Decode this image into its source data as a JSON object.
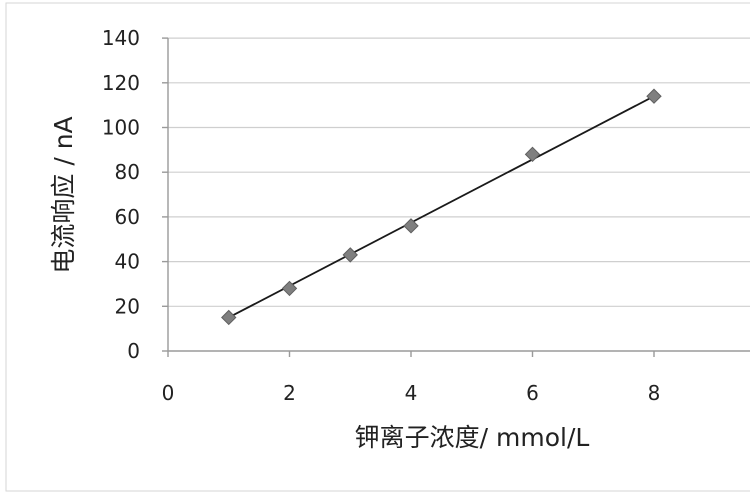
{
  "chart_data": {
    "type": "scatter",
    "xlabel": "钾离子浓度/ mmol/L",
    "ylabel": "电流响应 / nA",
    "xlim": [
      0,
      10
    ],
    "ylim": [
      0,
      140
    ],
    "x_ticks": [
      0,
      2,
      4,
      6,
      8
    ],
    "y_ticks": [
      0,
      20,
      40,
      60,
      80,
      100,
      120,
      140
    ],
    "grid": "horizontal",
    "legend": "none",
    "marker": "diamond",
    "marker_color": "#7f7f7f",
    "line_color": "#1a1a1a",
    "series": [
      {
        "points": [
          {
            "x": 1,
            "y": 15
          },
          {
            "x": 2,
            "y": 28
          },
          {
            "x": 3,
            "y": 43
          },
          {
            "x": 4,
            "y": 56
          },
          {
            "x": 6,
            "y": 88
          },
          {
            "x": 8,
            "y": 114
          }
        ]
      }
    ],
    "trendline": {
      "x_start": 1,
      "y_start": 15,
      "x_end": 8,
      "y_end": 114
    }
  }
}
